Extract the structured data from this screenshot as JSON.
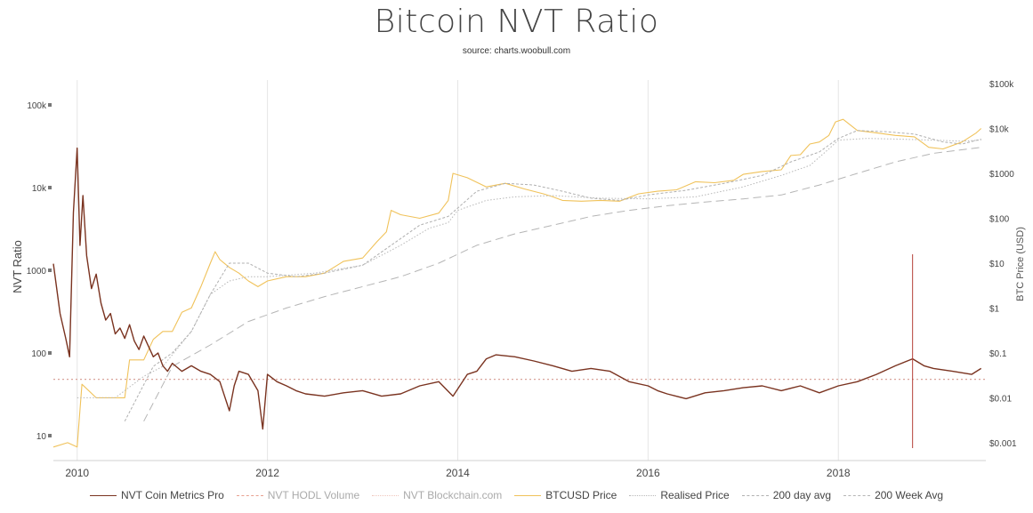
{
  "chart_data": {
    "type": "line",
    "title": "Bitcoin NVT Ratio",
    "subtitle": "source: charts.woobull.com",
    "xlabel": "",
    "ylabel_left": "NVT Ratio",
    "ylabel_right": "BTC Price (USD)",
    "x_ticks": [
      "2010",
      "2012",
      "2014",
      "2016",
      "2018"
    ],
    "x_tick_values": [
      2010,
      2012,
      2014,
      2016,
      2018
    ],
    "xlim": [
      2009.75,
      2019.55
    ],
    "y_left_scale": "log",
    "y_left_ticks": [
      "100k",
      "10k",
      "1000",
      "100",
      "10"
    ],
    "y_left_tick_values": [
      100000,
      10000,
      1000,
      100,
      10
    ],
    "y_left_lim": [
      5,
      200000
    ],
    "y_right_scale": "log",
    "y_right_ticks": [
      "$100k",
      "$10k",
      "$1000",
      "$100",
      "$10",
      "$1",
      "$0.1",
      "$0.01",
      "$0.001"
    ],
    "y_right_tick_values": [
      100000,
      10000,
      1000,
      100,
      10,
      1,
      0.1,
      0.01,
      0.001
    ],
    "y_right_lim": [
      0.0004,
      120000
    ],
    "reference_line": {
      "axis": "left",
      "value": 48,
      "style": "dotted",
      "color": "#d9a39a"
    },
    "marker_line": {
      "x": 2018.78,
      "color": "#b5413a"
    },
    "legend_position": "bottom",
    "series": [
      {
        "name": "NVT Coin Metrics Pro",
        "axis": "left",
        "color": "#7a3320",
        "style": "solid",
        "x": [
          2009.75,
          2009.82,
          2009.88,
          2009.92,
          2009.96,
          2010.0,
          2010.03,
          2010.06,
          2010.1,
          2010.15,
          2010.2,
          2010.25,
          2010.3,
          2010.35,
          2010.4,
          2010.45,
          2010.5,
          2010.55,
          2010.6,
          2010.65,
          2010.7,
          2010.75,
          2010.8,
          2010.85,
          2010.9,
          2010.95,
          2011.0,
          2011.1,
          2011.2,
          2011.3,
          2011.4,
          2011.5,
          2011.6,
          2011.65,
          2011.7,
          2011.8,
          2011.9,
          2011.95,
          2012.0,
          2012.1,
          2012.2,
          2012.3,
          2012.4,
          2012.6,
          2012.8,
          2013.0,
          2013.2,
          2013.4,
          2013.6,
          2013.8,
          2013.95,
          2014.1,
          2014.2,
          2014.3,
          2014.4,
          2014.6,
          2014.8,
          2015.0,
          2015.2,
          2015.4,
          2015.6,
          2015.8,
          2016.0,
          2016.1,
          2016.2,
          2016.4,
          2016.6,
          2016.8,
          2017.0,
          2017.2,
          2017.4,
          2017.6,
          2017.8,
          2018.0,
          2018.2,
          2018.4,
          2018.6,
          2018.78,
          2018.9,
          2019.0,
          2019.2,
          2019.4,
          2019.5
        ],
        "values": [
          1200,
          300,
          150,
          90,
          5000,
          30000,
          2000,
          8000,
          1500,
          600,
          900,
          400,
          250,
          300,
          170,
          200,
          150,
          220,
          140,
          110,
          160,
          120,
          90,
          100,
          70,
          60,
          75,
          60,
          70,
          60,
          55,
          45,
          20,
          40,
          60,
          55,
          35,
          12,
          55,
          45,
          40,
          35,
          32,
          30,
          33,
          35,
          30,
          32,
          40,
          45,
          30,
          55,
          60,
          85,
          95,
          90,
          80,
          70,
          60,
          65,
          60,
          45,
          40,
          35,
          32,
          28,
          33,
          35,
          38,
          40,
          35,
          40,
          33,
          40,
          45,
          55,
          70,
          85,
          70,
          65,
          60,
          55,
          65
        ]
      },
      {
        "name": "NVT HODL Volume",
        "axis": "left",
        "color": "#e8a090",
        "style": "dashed",
        "x": [],
        "values": []
      },
      {
        "name": "NVT Blockchain.com",
        "axis": "left",
        "color": "#efc6bc",
        "style": "dotted",
        "x": [],
        "values": []
      },
      {
        "name": "BTCUSD Price",
        "axis": "right",
        "color": "#f0c25a",
        "style": "solid",
        "x": [
          2009.75,
          2009.9,
          2010.0,
          2010.05,
          2010.2,
          2010.4,
          2010.5,
          2010.55,
          2010.6,
          2010.7,
          2010.8,
          2010.9,
          2011.0,
          2011.1,
          2011.2,
          2011.3,
          2011.4,
          2011.45,
          2011.5,
          2011.6,
          2011.7,
          2011.8,
          2011.9,
          2012.0,
          2012.2,
          2012.4,
          2012.6,
          2012.8,
          2013.0,
          2013.15,
          2013.25,
          2013.3,
          2013.4,
          2013.6,
          2013.8,
          2013.9,
          2013.95,
          2014.1,
          2014.3,
          2014.5,
          2014.7,
          2014.9,
          2015.0,
          2015.1,
          2015.3,
          2015.5,
          2015.7,
          2015.9,
          2016.1,
          2016.3,
          2016.5,
          2016.7,
          2016.9,
          2017.0,
          2017.2,
          2017.4,
          2017.5,
          2017.6,
          2017.7,
          2017.8,
          2017.9,
          2017.97,
          2018.05,
          2018.2,
          2018.4,
          2018.6,
          2018.8,
          2018.95,
          2019.1,
          2019.3,
          2019.45,
          2019.5
        ],
        "values": [
          0.0008,
          0.001,
          0.0008,
          0.02,
          0.01,
          0.01,
          0.01,
          0.07,
          0.07,
          0.07,
          0.2,
          0.3,
          0.3,
          0.8,
          1,
          3,
          10,
          18,
          12,
          8,
          6,
          4,
          3,
          4,
          5,
          5,
          6,
          11,
          13,
          30,
          50,
          150,
          120,
          100,
          130,
          250,
          1000,
          800,
          500,
          600,
          450,
          350,
          300,
          250,
          240,
          250,
          240,
          350,
          400,
          430,
          650,
          620,
          700,
          950,
          1100,
          1200,
          2500,
          2600,
          4500,
          5000,
          7000,
          14000,
          16000,
          9000,
          8000,
          7000,
          6500,
          3800,
          3500,
          5000,
          8000,
          10000
        ]
      },
      {
        "name": "Realised Price",
        "axis": "right",
        "color": "#b8b8b8",
        "style": "dotted",
        "x": [
          2010.0,
          2010.4,
          2010.7,
          2010.9,
          2011.2,
          2011.4,
          2011.6,
          2011.8,
          2012.0,
          2012.5,
          2013.0,
          2013.4,
          2013.7,
          2013.9,
          2014.0,
          2014.3,
          2014.6,
          2015.0,
          2015.5,
          2016.0,
          2016.5,
          2017.0,
          2017.4,
          2017.7,
          2017.9,
          2018.0,
          2018.3,
          2018.6,
          2019.0,
          2019.3,
          2019.5
        ],
        "values": [
          0.01,
          0.01,
          0.03,
          0.05,
          0.3,
          2,
          4,
          5,
          5,
          6,
          9,
          25,
          60,
          80,
          150,
          250,
          300,
          320,
          280,
          270,
          300,
          500,
          900,
          1500,
          3500,
          5500,
          6000,
          5800,
          5500,
          5200,
          5500
        ]
      },
      {
        "name": "200 day avg",
        "axis": "right",
        "color": "#b0b0b0",
        "style": "dashed-fine",
        "x": [
          2010.5,
          2010.8,
          2011.0,
          2011.2,
          2011.4,
          2011.6,
          2011.8,
          2012.0,
          2012.3,
          2012.6,
          2013.0,
          2013.3,
          2013.6,
          2013.9,
          2014.2,
          2014.5,
          2014.8,
          2015.1,
          2015.4,
          2015.7,
          2016.0,
          2016.4,
          2016.8,
          2017.2,
          2017.5,
          2017.8,
          2018.0,
          2018.2,
          2018.5,
          2018.8,
          2019.1,
          2019.3,
          2019.5
        ],
        "values": [
          0.003,
          0.05,
          0.1,
          0.3,
          2,
          10,
          10,
          6,
          5,
          6,
          9,
          25,
          70,
          110,
          400,
          600,
          550,
          400,
          280,
          250,
          330,
          420,
          600,
          900,
          1800,
          3000,
          6000,
          9000,
          8500,
          7500,
          5000,
          4500,
          5800
        ]
      },
      {
        "name": "200 Week Avg",
        "axis": "right",
        "color": "#b5b5b5",
        "style": "long-dashed",
        "x": [
          2010.7,
          2011.0,
          2011.4,
          2011.8,
          2012.2,
          2012.6,
          2013.0,
          2013.4,
          2013.8,
          2014.2,
          2014.6,
          2015.0,
          2015.4,
          2015.8,
          2016.2,
          2016.6,
          2017.0,
          2017.4,
          2017.8,
          2018.2,
          2018.6,
          2019.0,
          2019.5
        ],
        "values": [
          0.003,
          0.05,
          0.15,
          0.5,
          1,
          1.8,
          3,
          5,
          10,
          25,
          45,
          70,
          110,
          150,
          190,
          230,
          270,
          330,
          550,
          1000,
          1800,
          2800,
          3800
        ]
      }
    ]
  }
}
